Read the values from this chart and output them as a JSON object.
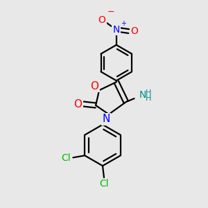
{
  "bg_color": "#e8e8e8",
  "bond_color": "#000000",
  "bond_width": 1.6,
  "atom_colors": {
    "O": "#ff0000",
    "N": "#0000ff",
    "Cl": "#00bb00",
    "NH2": "#008b8b",
    "C": "#000000"
  },
  "figsize": [
    3.0,
    3.0
  ],
  "dpi": 100
}
